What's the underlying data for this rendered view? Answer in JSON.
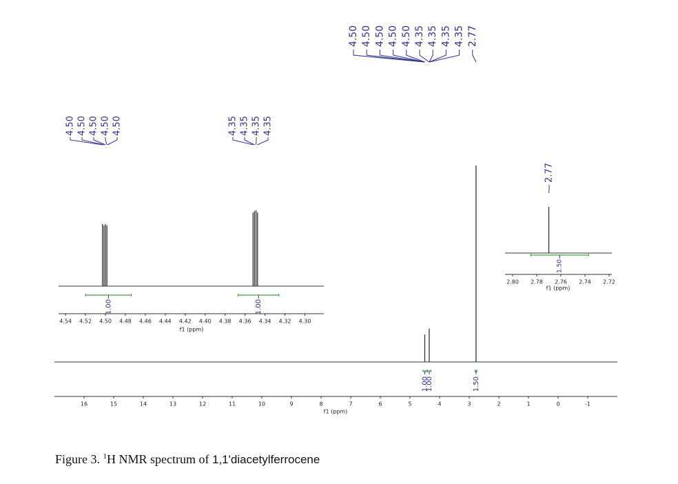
{
  "chart_data": [
    {
      "type": "spectrum",
      "xlabel": "f1 (ppm)",
      "xlim": [
        17,
        -2
      ],
      "xticks": [
        16,
        15,
        14,
        13,
        12,
        11,
        10,
        9,
        8,
        7,
        6,
        5,
        4,
        3,
        2,
        1,
        0,
        -1
      ],
      "ylim": [
        0,
        1
      ],
      "peaks": {
        "x": [
          4.5,
          4.35,
          2.77
        ],
        "values": [
          0.14,
          0.17,
          1
        ]
      },
      "peak_labels": [
        {
          "value": 4.5,
          "label": "4.50"
        },
        {
          "value": 4.5,
          "label": "4.50"
        },
        {
          "value": 4.5,
          "label": "4.50"
        },
        {
          "value": 4.5,
          "label": "4.50"
        },
        {
          "value": 4.5,
          "label": "4.50"
        },
        {
          "value": 4.35,
          "label": "4.35"
        },
        {
          "value": 4.35,
          "label": "4.35"
        },
        {
          "value": 4.35,
          "label": "4.35"
        },
        {
          "value": 4.35,
          "label": "4.35"
        },
        {
          "value": 2.77,
          "label": "2.77"
        }
      ],
      "integrals": {
        "ranges": [
          [
            4.56,
            4.44
          ],
          [
            4.41,
            4.29
          ],
          [
            2.8,
            2.74
          ]
        ],
        "values": [
          1,
          1,
          1.5
        ],
        "value_labels": [
          "1.00",
          "1.00",
          "1.50"
        ]
      },
      "line_color": "#333333",
      "label_color": "#2e3192",
      "integral_color": "#3aa43a"
    },
    {
      "type": "spectrum",
      "xlabel": "f1 (ppm)",
      "xlim": [
        4.547,
        4.281
      ],
      "xticks": [
        {
          "value": 4.54,
          "label": "4.54"
        },
        {
          "value": 4.52,
          "label": "4.52"
        },
        {
          "value": 4.5,
          "label": "4.50"
        },
        {
          "value": 4.48,
          "label": "4.48"
        },
        {
          "value": 4.46,
          "label": "4.46"
        },
        {
          "value": 4.44,
          "label": "4.44"
        },
        {
          "value": 4.42,
          "label": "4.42"
        },
        {
          "value": 4.4,
          "label": "4.40"
        },
        {
          "value": 4.38,
          "label": "4.38"
        },
        {
          "value": 4.36,
          "label": "4.36"
        },
        {
          "value": 4.34,
          "label": "4.34"
        },
        {
          "value": 4.32,
          "label": "4.32"
        },
        {
          "value": 4.3,
          "label": "4.30"
        }
      ],
      "ylim": [
        0,
        1
      ],
      "peaks": {
        "x": [
          4.503,
          4.5015,
          4.5,
          4.4985,
          4.352,
          4.3505,
          4.349,
          4.3475
        ],
        "values": [
          0.82,
          0.8,
          0.82,
          0.8,
          0.97,
          0.99,
          1,
          0.97
        ]
      },
      "peak_labels": [
        {
          "value": 4.503,
          "label": "4.50"
        },
        {
          "value": 4.5015,
          "label": "4.50"
        },
        {
          "value": 4.5,
          "label": "4.50"
        },
        {
          "value": 4.4985,
          "label": "4.50"
        },
        {
          "value": 4.498,
          "label": "4.50"
        },
        {
          "value": 4.352,
          "label": "4.35"
        },
        {
          "value": 4.3505,
          "label": "4.35"
        },
        {
          "value": 4.349,
          "label": "4.35"
        },
        {
          "value": 4.3475,
          "label": "4.35"
        }
      ],
      "integrals": {
        "ranges": [
          [
            4.52,
            4.474
          ],
          [
            4.367,
            4.326
          ]
        ],
        "values": [
          1,
          1
        ],
        "value_labels": [
          "1.00",
          "1.00"
        ]
      },
      "line_color": "#333333",
      "label_color": "#2e3192",
      "integral_color": "#3aa43a"
    },
    {
      "type": "spectrum",
      "xlabel": "f1 (ppm)",
      "xlim": [
        2.8063,
        2.7177
      ],
      "xticks": [
        {
          "value": 2.8,
          "label": "2.80"
        },
        {
          "value": 2.78,
          "label": "2.78"
        },
        2.76,
        2.74,
        2.72
      ],
      "ylim": [
        0,
        1
      ],
      "peaks": {
        "x": [
          2.77
        ],
        "values": [
          1
        ]
      },
      "peak_labels": [
        {
          "value": 2.77,
          "label": "2.77"
        }
      ],
      "integrals": {
        "ranges": [
          [
            2.785,
            2.737
          ]
        ],
        "values": [
          1.5
        ],
        "value_labels": [
          "1.50"
        ]
      },
      "line_color": "#333333",
      "label_color": "#2e3192",
      "integral_color": "#3aa43a"
    }
  ],
  "caption": {
    "prefix": "Figure 3. ",
    "superscript": "1",
    "text": "H NMR spectrum of ",
    "compound": "1,1'diacetylferrocene"
  }
}
